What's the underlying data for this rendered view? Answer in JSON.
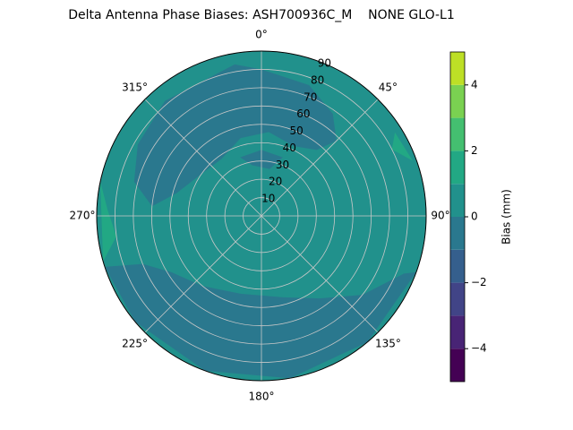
{
  "chart_data": {
    "type": "polar-contour",
    "title": "Delta Antenna Phase Biases: ASH700936C_M    NONE GLO-L1",
    "thetaticks": [
      {
        "value": 0,
        "label": "0°"
      },
      {
        "value": 45,
        "label": "45°"
      },
      {
        "value": 90,
        "label": "90°"
      },
      {
        "value": 135,
        "label": "135°"
      },
      {
        "value": 180,
        "label": "180°"
      },
      {
        "value": 225,
        "label": "225°"
      },
      {
        "value": 270,
        "label": "270°"
      },
      {
        "value": 315,
        "label": "315°"
      }
    ],
    "rlim": [
      0,
      90
    ],
    "rticks": [
      10,
      20,
      30,
      40,
      50,
      60,
      70,
      80,
      90
    ],
    "grid": true,
    "levels": [
      -5,
      -4,
      -3,
      -2,
      -1,
      0,
      1,
      2,
      3,
      4,
      5
    ],
    "colors": [
      "#440154",
      "#482475",
      "#414487",
      "#355f8d",
      "#2a788e",
      "#21918c",
      "#22a884",
      "#44bf70",
      "#7ad151",
      "#bddf26"
    ],
    "colorbar_label": "Bias (mm)",
    "colorbar_ticks": [
      {
        "value": -4,
        "label": "−4"
      },
      {
        "value": -2,
        "label": "−2"
      },
      {
        "value": 0,
        "label": "0"
      },
      {
        "value": 2,
        "label": "2"
      },
      {
        "value": 4,
        "label": "4"
      }
    ]
  }
}
